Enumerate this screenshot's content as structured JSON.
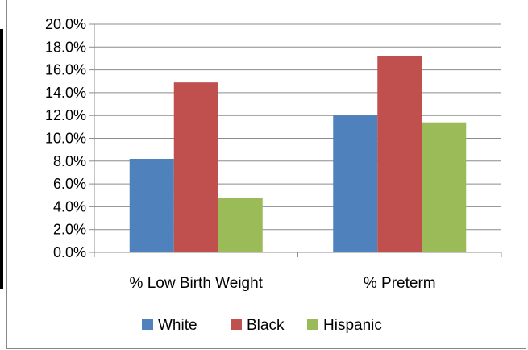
{
  "chart_data": {
    "type": "bar",
    "categories": [
      "% Low Birth Weight",
      "% Preterm"
    ],
    "series": [
      {
        "name": "White",
        "color": "#4F81BD",
        "values": [
          8.2,
          12.0
        ]
      },
      {
        "name": "Black",
        "color": "#C0504D",
        "values": [
          14.9,
          17.2
        ]
      },
      {
        "name": "Hispanic",
        "color": "#9BBB59",
        "values": [
          4.8,
          11.4
        ]
      }
    ],
    "ylim": [
      0,
      20
    ],
    "yticks": [
      0,
      2,
      4,
      6,
      8,
      10,
      12,
      14,
      16,
      18,
      20
    ],
    "ytick_labels": [
      "0.0%",
      "2.0%",
      "4.0%",
      "6.0%",
      "8.0%",
      "10.0%",
      "12.0%",
      "14.0%",
      "16.0%",
      "18.0%",
      "20.0%"
    ],
    "grid": true,
    "legend_position": "bottom"
  }
}
